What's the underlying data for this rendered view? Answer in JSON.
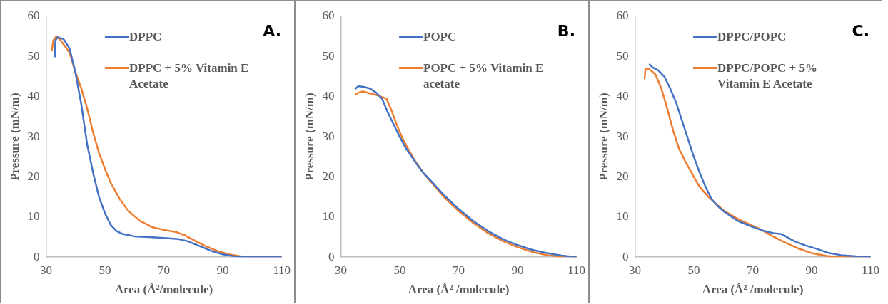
{
  "chart_data": [
    {
      "type": "line",
      "xlabel": "Area (Å²/molecule)",
      "ylabel": "Pressure (mN/m)",
      "annotations": [
        "A."
      ],
      "xlim": [
        30,
        110
      ],
      "xticks": [
        30,
        50,
        70,
        90,
        110
      ],
      "ylim": [
        0,
        60
      ],
      "yticks": [
        0,
        10,
        20,
        30,
        40,
        50,
        60
      ],
      "grid": false,
      "legend": "top right",
      "marker": "none",
      "line_style": "solid",
      "series": [
        {
          "name": "DPPC",
          "color": "#4472c4",
          "x": [
            33,
            33.2,
            34,
            36,
            38,
            40,
            42,
            44,
            46,
            48,
            50,
            52,
            54,
            56,
            60,
            65,
            70,
            75,
            78,
            82,
            86,
            90,
            95,
            100,
            110
          ],
          "values": [
            50,
            54,
            54.8,
            54.3,
            52,
            46,
            38,
            28,
            21,
            15,
            11,
            8,
            6.5,
            5.8,
            5.2,
            5,
            4.8,
            4.5,
            4,
            2.8,
            1.6,
            0.7,
            0.1,
            0,
            0
          ]
        },
        {
          "name": "DPPC + 5% Vitamin E Acetate",
          "color": "#ed7d31",
          "x": [
            32,
            32.5,
            33.5,
            35,
            38,
            40,
            42,
            44,
            46,
            48,
            50,
            52,
            55,
            58,
            62,
            66,
            70,
            74,
            77,
            80,
            84,
            88,
            92,
            96,
            100,
            110
          ],
          "values": [
            51.5,
            54,
            55,
            54,
            51,
            46,
            42,
            37,
            31,
            26,
            22,
            18.5,
            14.5,
            11.5,
            9,
            7.5,
            6.8,
            6.3,
            5.5,
            4.3,
            2.8,
            1.6,
            0.7,
            0.2,
            0,
            0
          ]
        }
      ]
    },
    {
      "type": "line",
      "xlabel": "Area (Å² /molecule)",
      "ylabel": "Pressure (mN/m)",
      "annotations": [
        "B."
      ],
      "xlim": [
        30,
        110
      ],
      "xticks": [
        30,
        50,
        70,
        90,
        110
      ],
      "ylim": [
        0,
        60
      ],
      "yticks": [
        0,
        10,
        20,
        30,
        40,
        50,
        60
      ],
      "grid": false,
      "legend": "top right",
      "marker": "none",
      "line_style": "solid",
      "series": [
        {
          "name": "POPC",
          "color": "#4472c4",
          "x": [
            35,
            36,
            38,
            40,
            42,
            44,
            46,
            48,
            50,
            52,
            55,
            58,
            60,
            65,
            70,
            75,
            80,
            85,
            90,
            95,
            100,
            105,
            110
          ],
          "values": [
            42,
            42.6,
            42.4,
            42,
            41,
            39.5,
            36,
            33,
            30,
            27.3,
            24,
            21,
            19.5,
            15.5,
            12,
            9,
            6.5,
            4.5,
            3,
            1.8,
            1,
            0.4,
            0
          ]
        },
        {
          "name": "POPC + 5% Vitamin E acetate",
          "color": "#ed7d31",
          "x": [
            35,
            36,
            37.5,
            40,
            43,
            45.5,
            47,
            49,
            51,
            53,
            55,
            58,
            60,
            65,
            70,
            75,
            80,
            85,
            90,
            95,
            100,
            105,
            110
          ],
          "values": [
            40.5,
            41,
            41.3,
            40.8,
            40.2,
            39.5,
            37,
            33,
            29.5,
            26.8,
            24.2,
            21,
            19.3,
            15,
            11.5,
            8.5,
            6,
            4,
            2.5,
            1.3,
            0.5,
            0.1,
            0
          ]
        }
      ]
    },
    {
      "type": "line",
      "xlabel": "Area (Å² /molecule)",
      "ylabel": "Pressure (mN/m)",
      "annotations": [
        "C."
      ],
      "xlim": [
        30,
        110
      ],
      "xticks": [
        30,
        50,
        70,
        90,
        110
      ],
      "ylim": [
        0,
        60
      ],
      "yticks": [
        0,
        10,
        20,
        30,
        40,
        50,
        60
      ],
      "grid": false,
      "legend": "top right",
      "marker": "none",
      "line_style": "solid",
      "series": [
        {
          "name": "DPPC/POPC",
          "color": "#4472c4",
          "x": [
            35,
            36,
            38,
            40,
            42,
            44,
            46,
            48,
            50,
            52,
            54,
            56,
            58,
            60,
            65,
            70,
            74,
            77,
            80,
            84,
            88,
            92,
            96,
            100,
            105,
            110
          ],
          "values": [
            48,
            47.3,
            46.5,
            45,
            42,
            38.5,
            34,
            29.5,
            25,
            21,
            17.5,
            14.5,
            12.8,
            11.5,
            9,
            7.5,
            6.5,
            6,
            5.7,
            4,
            2.9,
            2,
            1,
            0.5,
            0.2,
            0.1
          ]
        },
        {
          "name": "DPPC/POPC + 5% Vitamin E Acetate",
          "color": "#ed7d31",
          "x": [
            33.3,
            33.6,
            35,
            37,
            39,
            41,
            43,
            45,
            47,
            50,
            52,
            55,
            58,
            60,
            65,
            70,
            73,
            76,
            80,
            85,
            90,
            95,
            100,
            110
          ],
          "values": [
            44.5,
            47,
            46.8,
            45.5,
            42,
            37,
            31.5,
            27,
            24,
            20,
            17.5,
            15,
            13,
            11.7,
            9.5,
            7.8,
            6.8,
            5.5,
            4,
            2.3,
            1,
            0.3,
            0,
            0
          ]
        }
      ]
    }
  ]
}
